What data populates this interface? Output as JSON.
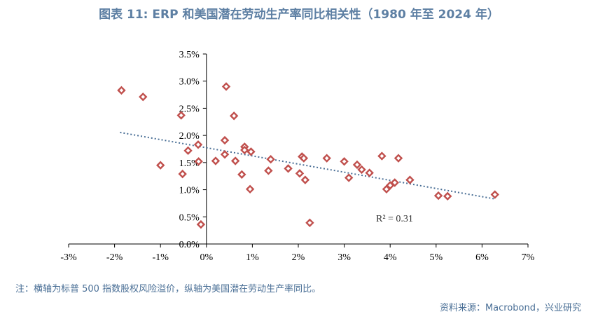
{
  "title": "图表 11: ERP 和美国潜在劳动生产率同比相关性（1980 年至 2024 年）",
  "note": "注：横轴为标普 500 指数股权风险溢价，纵轴为美国潜在劳动生产率同比。",
  "source": "资料来源：Macrobond，兴业研究",
  "chart_data": {
    "type": "scatter",
    "title": "图表 11: ERP 和美国潜在劳动生产率同比相关性（1980 年至 2024 年）",
    "xlabel": "",
    "ylabel": "",
    "xlim": [
      -0.03,
      0.07
    ],
    "ylim": [
      0.0,
      0.035
    ],
    "x_ticks": [
      -0.03,
      -0.02,
      -0.01,
      0.0,
      0.01,
      0.02,
      0.03,
      0.04,
      0.05,
      0.06,
      0.07
    ],
    "x_tick_labels": [
      "-3%",
      "-2%",
      "-1%",
      "0%",
      "1%",
      "2%",
      "3%",
      "4%",
      "5%",
      "6%",
      "7%"
    ],
    "y_ticks": [
      0.0,
      0.005,
      0.01,
      0.015,
      0.02,
      0.025,
      0.03,
      0.035
    ],
    "y_tick_labels": [
      "0.0%",
      "0.5%",
      "1.0%",
      "1.5%",
      "2.0%",
      "2.5%",
      "3.0%",
      "3.5%"
    ],
    "grid": false,
    "marker_color": "#c0504d",
    "trendline_color": "#4a6f96",
    "points": [
      {
        "x": -0.0185,
        "y": 0.0283
      },
      {
        "x": -0.0138,
        "y": 0.0271
      },
      {
        "x": -0.01,
        "y": 0.0145
      },
      {
        "x": -0.0055,
        "y": 0.0237
      },
      {
        "x": -0.0052,
        "y": 0.0129
      },
      {
        "x": -0.004,
        "y": 0.0172
      },
      {
        "x": -0.0018,
        "y": 0.0183
      },
      {
        "x": -0.0017,
        "y": 0.0152
      },
      {
        "x": -0.0012,
        "y": 0.0036
      },
      {
        "x": 0.002,
        "y": 0.0153
      },
      {
        "x": 0.004,
        "y": 0.0191
      },
      {
        "x": 0.004,
        "y": 0.0165
      },
      {
        "x": 0.0043,
        "y": 0.029
      },
      {
        "x": 0.006,
        "y": 0.0236
      },
      {
        "x": 0.0063,
        "y": 0.0153
      },
      {
        "x": 0.0077,
        "y": 0.0128
      },
      {
        "x": 0.0083,
        "y": 0.0179
      },
      {
        "x": 0.0083,
        "y": 0.0173
      },
      {
        "x": 0.0095,
        "y": 0.0101
      },
      {
        "x": 0.0097,
        "y": 0.017
      },
      {
        "x": 0.0135,
        "y": 0.0135
      },
      {
        "x": 0.014,
        "y": 0.0156
      },
      {
        "x": 0.0178,
        "y": 0.0139
      },
      {
        "x": 0.0203,
        "y": 0.013
      },
      {
        "x": 0.0208,
        "y": 0.0161
      },
      {
        "x": 0.0212,
        "y": 0.0158
      },
      {
        "x": 0.0215,
        "y": 0.0118
      },
      {
        "x": 0.0225,
        "y": 0.0039
      },
      {
        "x": 0.0262,
        "y": 0.0158
      },
      {
        "x": 0.03,
        "y": 0.0152
      },
      {
        "x": 0.031,
        "y": 0.0122
      },
      {
        "x": 0.0328,
        "y": 0.0146
      },
      {
        "x": 0.0338,
        "y": 0.0137
      },
      {
        "x": 0.0355,
        "y": 0.0131
      },
      {
        "x": 0.0382,
        "y": 0.0162
      },
      {
        "x": 0.0392,
        "y": 0.0101
      },
      {
        "x": 0.04,
        "y": 0.0108
      },
      {
        "x": 0.041,
        "y": 0.0113
      },
      {
        "x": 0.0418,
        "y": 0.0158
      },
      {
        "x": 0.0443,
        "y": 0.0118
      },
      {
        "x": 0.0505,
        "y": 0.0089
      },
      {
        "x": 0.0525,
        "y": 0.0088
      },
      {
        "x": 0.0628,
        "y": 0.0091
      }
    ],
    "trendline": {
      "x": [
        -0.0188,
        0.0628
      ],
      "y": [
        0.02055,
        0.0083
      ]
    },
    "annotation": "R² = 0.31"
  }
}
